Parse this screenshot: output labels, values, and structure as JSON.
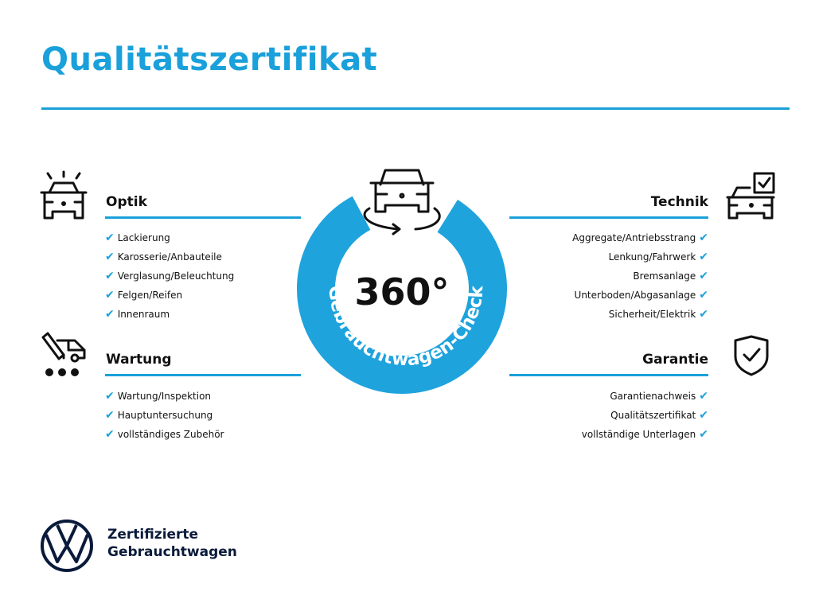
{
  "title": "Qualitätszertifikat",
  "accent_color": "#1aa0da",
  "center": {
    "label": "360°",
    "ring_text": "Gebrauchtwagen-Check",
    "icon": "car-rotate-icon"
  },
  "sections": {
    "optik": {
      "title": "Optik",
      "icon": "car-lights-icon",
      "items": [
        "Lackierung",
        "Karosserie/Anbauteile",
        "Verglasung/Beleuchtung",
        "Felgen/Reifen",
        "Innenraum"
      ]
    },
    "wartung": {
      "title": "Wartung",
      "icon": "car-tool-icon",
      "items": [
        "Wartung/Inspektion",
        "Hauptuntersuchung",
        "vollständiges Zubehör"
      ]
    },
    "technik": {
      "title": "Technik",
      "icon": "car-checklist-icon",
      "items": [
        "Aggregate/Antriebsstrang",
        "Lenkung/Fahrwerk",
        "Bremsanlage",
        "Unterboden/Abgasanlage",
        "Sicherheit/Elektrik"
      ]
    },
    "garantie": {
      "title": "Garantie",
      "icon": "shield-check-icon",
      "items": [
        "Garantienachweis",
        "Qualitätszertifikat",
        "vollständige Unterlagen"
      ]
    }
  },
  "check_mark": "✔",
  "footer": {
    "line1": "Zertifizierte",
    "line2": "Gebrauchtwagen",
    "logo": "VW"
  }
}
